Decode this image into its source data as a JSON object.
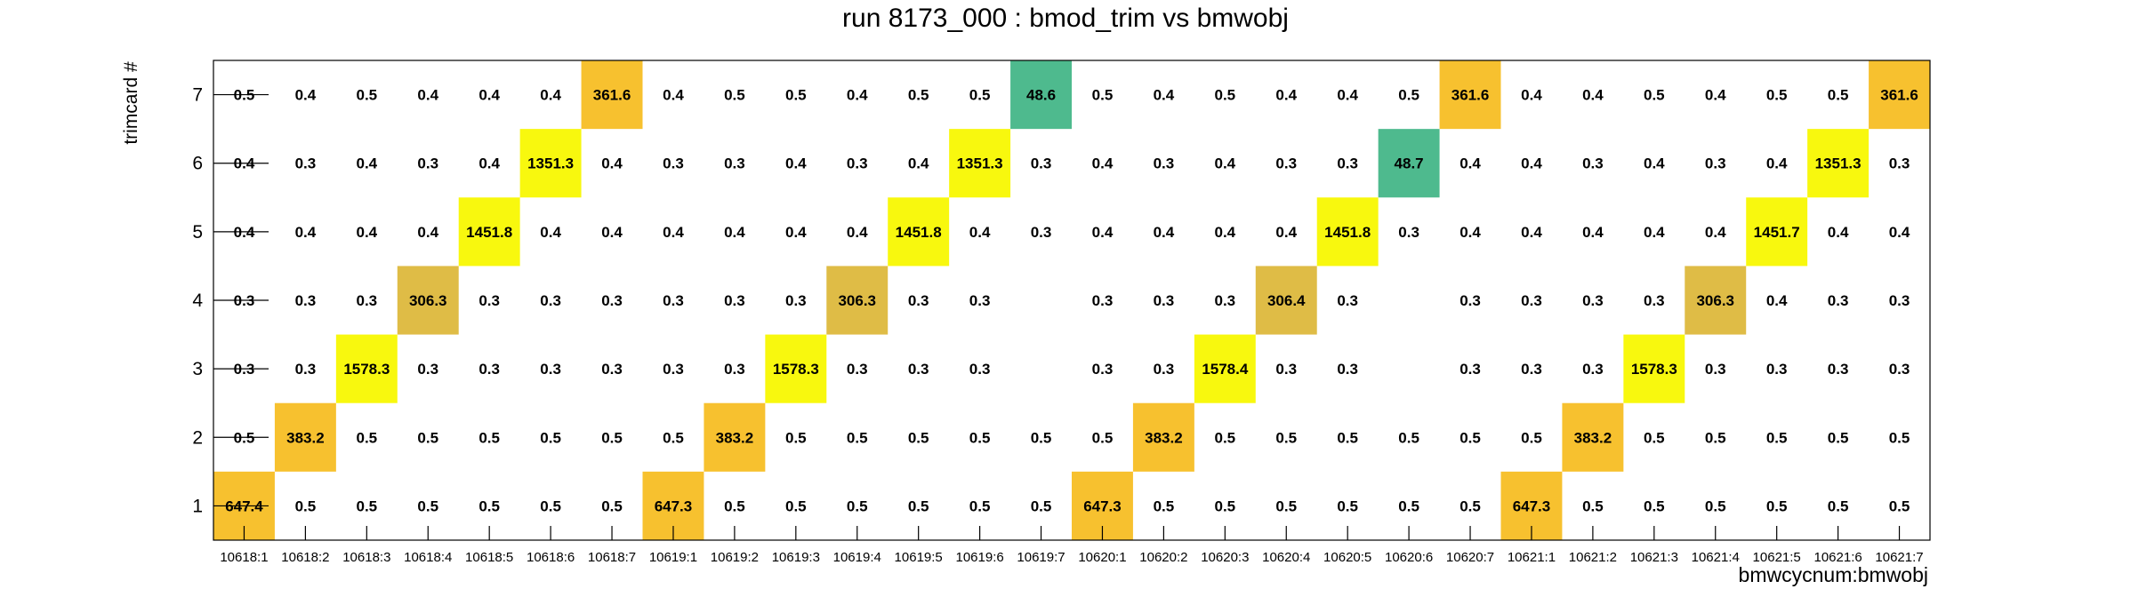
{
  "chart_data": {
    "type": "heatmap",
    "title": "run 8173_000 : bmod_trim vs bmwobj",
    "xlabel": "bmwcycnum:bmwobj",
    "ylabel": "trimcard #",
    "x_categories": [
      "10618:1",
      "10618:2",
      "10618:3",
      "10618:4",
      "10618:5",
      "10618:6",
      "10618:7",
      "10619:1",
      "10619:2",
      "10619:3",
      "10619:4",
      "10619:5",
      "10619:6",
      "10619:7",
      "10620:1",
      "10620:2",
      "10620:3",
      "10620:4",
      "10620:5",
      "10620:6",
      "10620:7",
      "10621:1",
      "10621:2",
      "10621:3",
      "10621:4",
      "10621:5",
      "10621:6",
      "10621:7"
    ],
    "y_categories": [
      "1",
      "2",
      "3",
      "4",
      "5",
      "6",
      "7"
    ],
    "cells": {
      "1": [
        647.4,
        0.5,
        0.5,
        0.5,
        0.5,
        0.5,
        0.5,
        647.3,
        0.5,
        0.5,
        0.5,
        0.5,
        0.5,
        0.5,
        647.3,
        0.5,
        0.5,
        0.5,
        0.5,
        0.5,
        0.5,
        647.3,
        0.5,
        0.5,
        0.5,
        0.5,
        0.5,
        0.5
      ],
      "2": [
        0.5,
        383.2,
        0.5,
        0.5,
        0.5,
        0.5,
        0.5,
        0.5,
        383.2,
        0.5,
        0.5,
        0.5,
        0.5,
        0.5,
        0.5,
        383.2,
        0.5,
        0.5,
        0.5,
        0.5,
        0.5,
        0.5,
        383.2,
        0.5,
        0.5,
        0.5,
        0.5,
        0.5
      ],
      "3": [
        0.3,
        0.3,
        1578.3,
        0.3,
        0.3,
        0.3,
        0.3,
        0.3,
        0.3,
        1578.3,
        0.3,
        0.3,
        0.3,
        null,
        0.3,
        0.3,
        1578.4,
        0.3,
        0.3,
        null,
        0.3,
        0.3,
        0.3,
        1578.3,
        0.3,
        0.3,
        0.3,
        0.3
      ],
      "4": [
        0.3,
        0.3,
        0.3,
        306.3,
        0.3,
        0.3,
        0.3,
        0.3,
        0.3,
        0.3,
        306.3,
        0.3,
        0.3,
        null,
        0.3,
        0.3,
        0.3,
        306.4,
        0.3,
        null,
        0.3,
        0.3,
        0.3,
        0.3,
        306.3,
        0.4,
        0.3,
        0.3
      ],
      "5": [
        0.4,
        0.4,
        0.4,
        0.4,
        1451.8,
        0.4,
        0.4,
        0.4,
        0.4,
        0.4,
        0.4,
        1451.8,
        0.4,
        0.3,
        0.4,
        0.4,
        0.4,
        0.4,
        1451.8,
        0.3,
        0.4,
        0.4,
        0.4,
        0.4,
        0.4,
        1451.7,
        0.4,
        0.4
      ],
      "6": [
        0.4,
        0.3,
        0.4,
        0.3,
        0.4,
        1351.3,
        0.4,
        0.3,
        0.3,
        0.4,
        0.3,
        0.4,
        1351.3,
        0.3,
        0.4,
        0.3,
        0.4,
        0.3,
        0.3,
        48.7,
        0.4,
        0.4,
        0.3,
        0.4,
        0.3,
        0.4,
        1351.3,
        0.3
      ],
      "7": [
        0.5,
        0.4,
        0.5,
        0.4,
        0.4,
        0.4,
        361.6,
        0.4,
        0.5,
        0.5,
        0.4,
        0.5,
        0.5,
        48.6,
        0.5,
        0.4,
        0.5,
        0.4,
        0.4,
        0.5,
        361.6,
        0.4,
        0.4,
        0.5,
        0.4,
        0.5,
        0.5,
        361.6
      ]
    },
    "colors": {
      "very_high": "#f8f80e",
      "high": "#f7c12f",
      "mid": "#dfbc46",
      "low": "#4eba8e",
      "axis": "#000000"
    }
  }
}
